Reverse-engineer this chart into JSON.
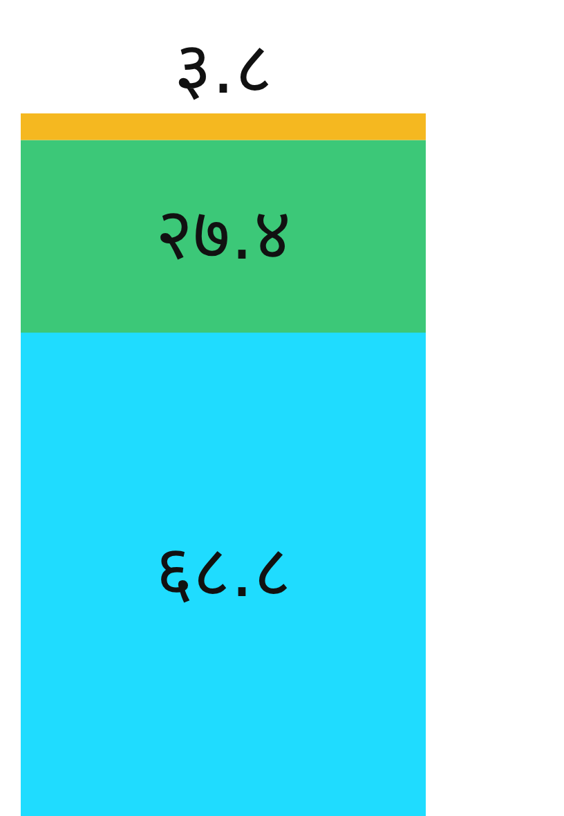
{
  "chart_data": {
    "type": "bar",
    "stacked": true,
    "categories": [
      null
    ],
    "series": [
      {
        "color": "#1fdcff",
        "values": [
          68.8
        ],
        "value_labels": [
          "६८.८"
        ]
      },
      {
        "color": "#3cc878",
        "values": [
          27.4
        ],
        "value_labels": [
          "२७.४"
        ]
      },
      {
        "color": "#f5b820",
        "values": [
          3.8
        ],
        "value_labels": [
          "३.८"
        ]
      }
    ]
  }
}
